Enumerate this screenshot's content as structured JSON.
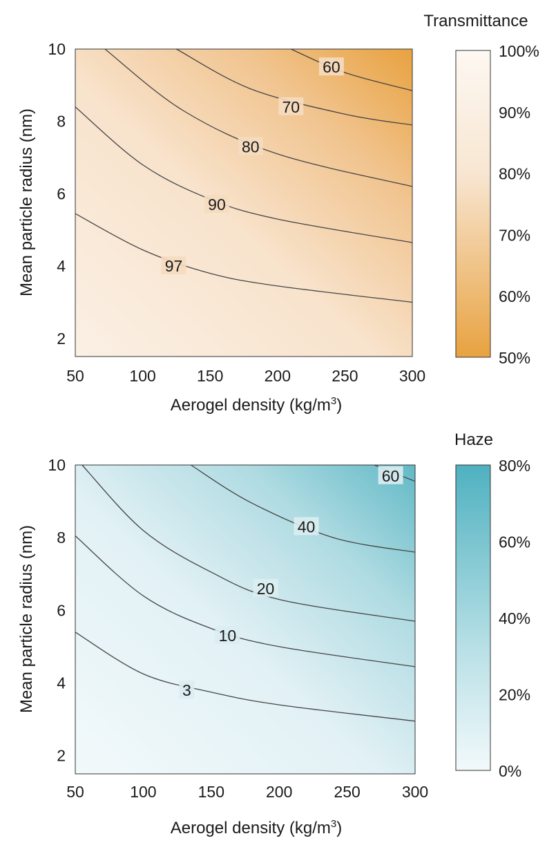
{
  "chart_data": [
    {
      "type": "heatmap",
      "metric": "transmittance",
      "xlabel": "Aerogel density (kg/m",
      "xlabel_sup": "3",
      "xlabel_tail": ")",
      "ylabel": "Mean particle radius (nm)",
      "x_ticks": [
        "50",
        "100",
        "150",
        "200",
        "250",
        "300"
      ],
      "y_ticks": [
        "2",
        "4",
        "6",
        "8",
        "10"
      ],
      "xlim": [
        50,
        300
      ],
      "ylim": [
        1.5,
        10
      ],
      "colorbar": {
        "title": "Transmittance",
        "ticks": [
          "100%",
          "90%",
          "80%",
          "70%",
          "60%",
          "50%"
        ],
        "range": [
          50,
          100
        ],
        "low_color": "#e8a240",
        "high_color": "#fdf8f2"
      },
      "contours": [
        {
          "label": "60",
          "points": [
            [
              210,
              10
            ],
            [
              250,
              9.35
            ],
            [
              300,
              8.85
            ]
          ],
          "label_at": [
            240,
            9.5
          ]
        },
        {
          "label": "70",
          "points": [
            [
              125,
              10
            ],
            [
              180,
              8.9
            ],
            [
              250,
              8.2
            ],
            [
              300,
              7.9
            ]
          ],
          "label_at": [
            210,
            8.4
          ]
        },
        {
          "label": "80",
          "points": [
            [
              72,
              10
            ],
            [
              130,
              8.3
            ],
            [
              200,
              7.1
            ],
            [
              300,
              6.2
            ]
          ],
          "label_at": [
            180,
            7.3
          ]
        },
        {
          "label": "90",
          "points": [
            [
              50,
              8.4
            ],
            [
              100,
              6.8
            ],
            [
              150,
              5.85
            ],
            [
              200,
              5.3
            ],
            [
              300,
              4.65
            ]
          ],
          "label_at": [
            155,
            5.7
          ]
        },
        {
          "label": "97",
          "points": [
            [
              50,
              5.45
            ],
            [
              100,
              4.45
            ],
            [
              150,
              3.8
            ],
            [
              200,
              3.45
            ],
            [
              300,
              3.0
            ]
          ],
          "label_at": [
            123,
            4.0
          ]
        }
      ]
    },
    {
      "type": "heatmap",
      "metric": "haze",
      "xlabel": "Aerogel density (kg/m",
      "xlabel_sup": "3",
      "xlabel_tail": ")",
      "ylabel": "Mean particle radius (nm)",
      "x_ticks": [
        "50",
        "100",
        "150",
        "200",
        "250",
        "300"
      ],
      "y_ticks": [
        "2",
        "4",
        "6",
        "8",
        "10"
      ],
      "xlim": [
        50,
        300
      ],
      "ylim": [
        1.5,
        10
      ],
      "colorbar": {
        "title": "Haze",
        "ticks": [
          "80%",
          "60%",
          "40%",
          "20%",
          "0%"
        ],
        "range": [
          0,
          80
        ],
        "low_color": "#f2f9fb",
        "high_color": "#55b4c2"
      },
      "contours": [
        {
          "label": "60",
          "points": [
            [
              270,
              10
            ],
            [
              300,
              9.55
            ]
          ],
          "label_at": [
            282,
            9.7
          ]
        },
        {
          "label": "40",
          "points": [
            [
              135,
              10
            ],
            [
              180,
              8.95
            ],
            [
              240,
              8.0
            ],
            [
              300,
              7.6
            ]
          ],
          "label_at": [
            220,
            8.3
          ]
        },
        {
          "label": "20",
          "points": [
            [
              55,
              10
            ],
            [
              100,
              8.2
            ],
            [
              150,
              7.05
            ],
            [
              200,
              6.3
            ],
            [
              300,
              5.7
            ]
          ],
          "label_at": [
            190,
            6.6
          ]
        },
        {
          "label": "10",
          "points": [
            [
              50,
              8.05
            ],
            [
              100,
              6.4
            ],
            [
              150,
              5.5
            ],
            [
              200,
              5.0
            ],
            [
              300,
              4.45
            ]
          ],
          "label_at": [
            162,
            5.3
          ]
        },
        {
          "label": "3",
          "points": [
            [
              50,
              5.4
            ],
            [
              100,
              4.25
            ],
            [
              150,
              3.75
            ],
            [
              200,
              3.4
            ],
            [
              300,
              2.95
            ]
          ],
          "label_at": [
            132,
            3.8
          ]
        }
      ]
    }
  ]
}
